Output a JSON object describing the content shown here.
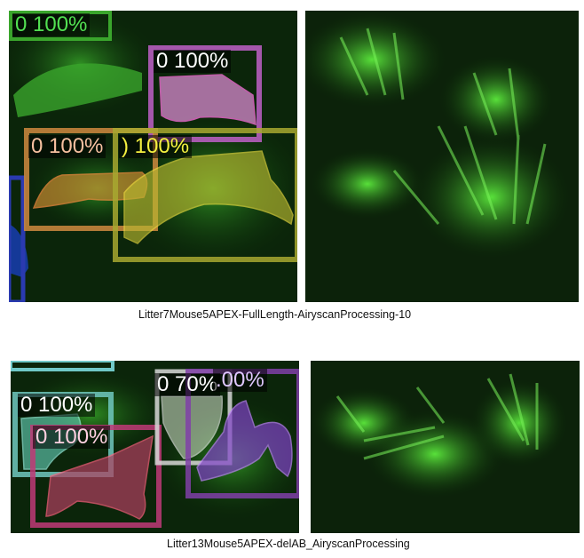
{
  "figures": [
    {
      "caption": "Litter7Mouse5APEX-FullLength-AiryscanProcessing-10",
      "detections": [
        {
          "label": "0 100%",
          "color": "#52e052"
        },
        {
          "label": "0 100%",
          "color": "#ff6bd8"
        },
        {
          "label": "0 100%",
          "color": "#f2a070"
        },
        {
          "label": ") 100%",
          "color": "#e8e83a"
        }
      ]
    },
    {
      "caption": "Litter13Mouse5APEX-delAB_AiryscanProcessing",
      "detections": [
        {
          "label": "0 100%",
          "color": "#7fe6d2"
        },
        {
          "label": "0 100%",
          "color": "#e0556e"
        },
        {
          "label": "0 70%",
          "color": "#e8f0e0"
        },
        {
          "label": ".00%",
          "color": "#b060e0"
        }
      ]
    }
  ]
}
